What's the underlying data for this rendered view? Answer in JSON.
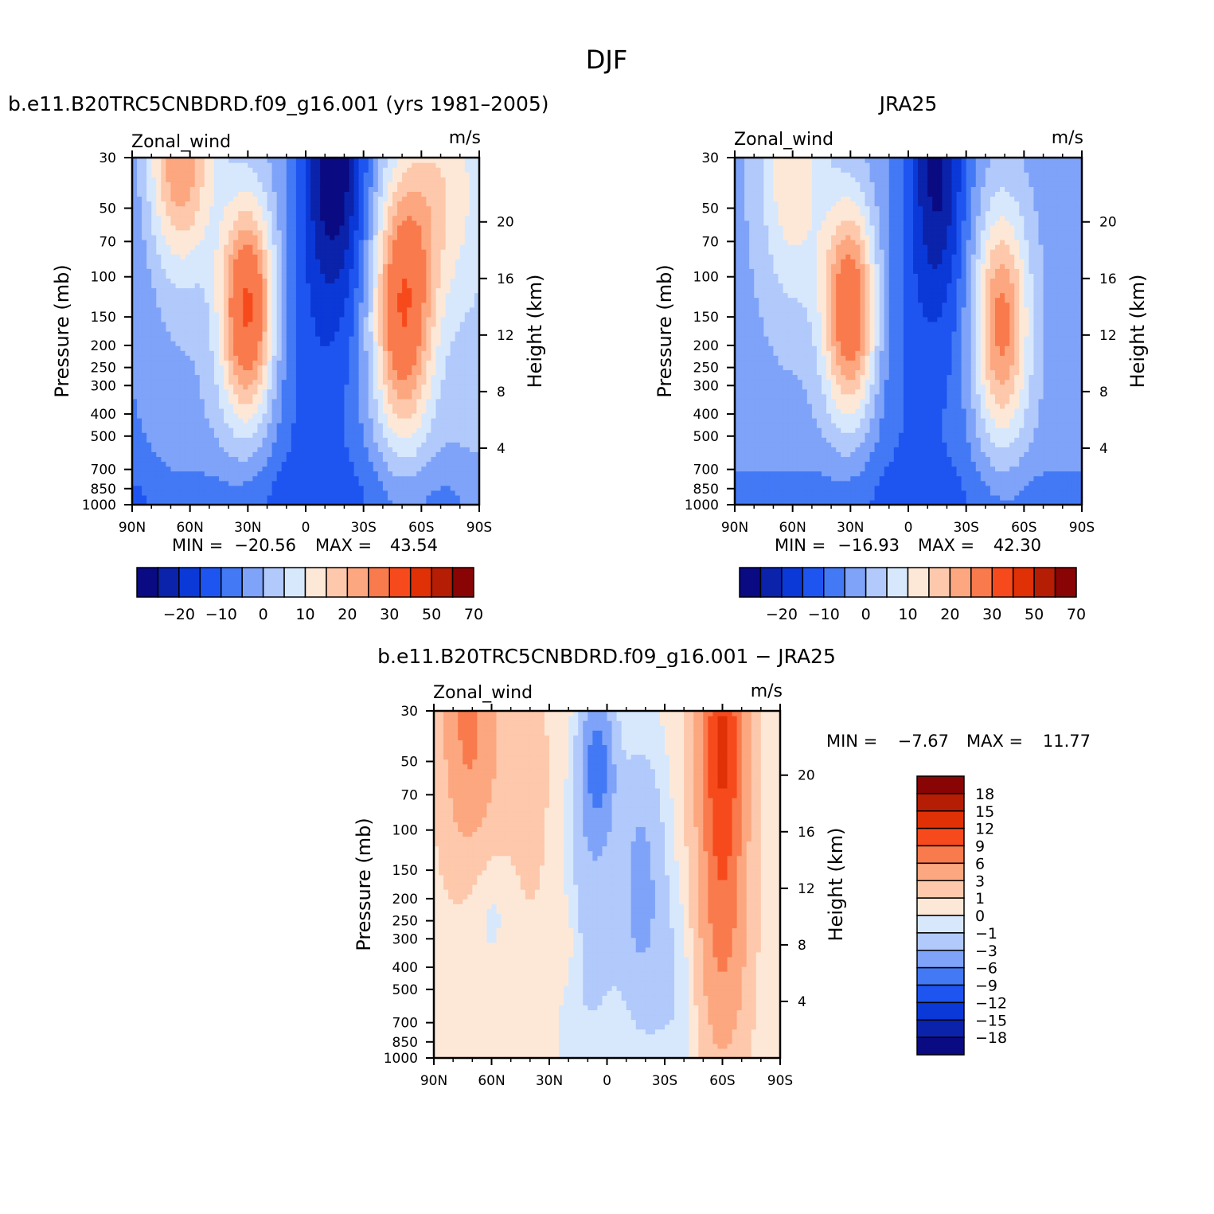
{
  "title": "DJF",
  "palette": [
    "#0a0a82",
    "#0b22aa",
    "#0b39d8",
    "#1e55f0",
    "#4379f5",
    "#7ea3f8",
    "#b1c9fb",
    "#d7e8fd",
    "#fde8d7",
    "#fdc8ab",
    "#fca77f",
    "#f97a4c",
    "#f74a1c",
    "#e03006",
    "#b51d04",
    "#890404"
  ],
  "chart_data": [
    {
      "type": "heatmap",
      "title": "b.e11.B20TRC5CNBDRD.f09_g16.001 (yrs 1981–2005)",
      "left_label": "Zonal_wind",
      "right_label": "m/s",
      "ylabel": "Pressure (mb)",
      "ylabel2": "Height (km)",
      "x_ticks": [
        "90N",
        "60N",
        "30N",
        "0",
        "30S",
        "60S",
        "90S"
      ],
      "x_range": [
        90,
        -90
      ],
      "y_ticks": [
        "30",
        "50",
        "70",
        "100",
        "150",
        "200",
        "250",
        "300",
        "400",
        "500",
        "700",
        "850",
        "1000"
      ],
      "y_range": [
        1000,
        30
      ],
      "y_scale": "log",
      "height_ticks": [
        "20",
        "16",
        "12",
        "8",
        "4"
      ],
      "min_label": "MIN =",
      "min_value": "−20.56",
      "max_label": "MAX =",
      "max_value": "43.54",
      "colorbar_labels": [
        "−20",
        "−10",
        "0",
        "10",
        "20",
        "30",
        "50",
        "70"
      ],
      "features": [
        {
          "lat": 30,
          "p": 200,
          "peak": 43.54
        },
        {
          "lat": -50,
          "p": 200,
          "peak": 38
        },
        {
          "lat": 65,
          "p": 30,
          "peak": 28
        },
        {
          "lat": -15,
          "p": 30,
          "peak": -20.56
        }
      ]
    },
    {
      "type": "heatmap",
      "title": "JRA25",
      "left_label": "Zonal_wind",
      "right_label": "m/s",
      "ylabel": "Pressure (mb)",
      "ylabel2": "Height (km)",
      "x_ticks": [
        "90N",
        "60N",
        "30N",
        "0",
        "30S",
        "60S",
        "90S"
      ],
      "x_range": [
        90,
        -90
      ],
      "y_ticks": [
        "30",
        "50",
        "70",
        "100",
        "150",
        "200",
        "250",
        "300",
        "400",
        "500",
        "700",
        "850",
        "1000"
      ],
      "y_range": [
        1000,
        30
      ],
      "y_scale": "log",
      "height_ticks": [
        "20",
        "16",
        "12",
        "8",
        "4"
      ],
      "min_label": "MIN =",
      "min_value": "−16.93",
      "max_label": "MAX =",
      "max_value": "42.30",
      "colorbar_labels": [
        "−20",
        "−10",
        "0",
        "10",
        "20",
        "30",
        "50",
        "70"
      ],
      "features": [
        {
          "lat": 30,
          "p": 200,
          "peak": 42.3
        },
        {
          "lat": -48,
          "p": 220,
          "peak": 33
        },
        {
          "lat": 60,
          "p": 30,
          "peak": 18
        },
        {
          "lat": -15,
          "p": 30,
          "peak": -16.93
        }
      ]
    },
    {
      "type": "heatmap",
      "title": "b.e11.B20TRC5CNBDRD.f09_g16.001 − JRA25",
      "left_label": "Zonal_wind",
      "right_label": "m/s",
      "ylabel": "Pressure (mb)",
      "ylabel2": "Height (km)",
      "x_ticks": [
        "90N",
        "60N",
        "30N",
        "0",
        "30S",
        "60S",
        "90S"
      ],
      "x_range": [
        90,
        -90
      ],
      "y_ticks": [
        "30",
        "50",
        "70",
        "100",
        "150",
        "200",
        "250",
        "300",
        "400",
        "500",
        "700",
        "850",
        "1000"
      ],
      "y_range": [
        1000,
        30
      ],
      "y_scale": "log",
      "height_ticks": [
        "20",
        "16",
        "12",
        "8",
        "4"
      ],
      "min_label": "MIN =",
      "min_value": "−7.67",
      "max_label": "MAX =",
      "max_value": "11.77",
      "colorbar_labels": [
        "18",
        "15",
        "12",
        "9",
        "6",
        "3",
        "1",
        "0",
        "−1",
        "−3",
        "−6",
        "−9",
        "−12",
        "−15",
        "−18"
      ],
      "features": [
        {
          "lat": -60,
          "p": 40,
          "peak": 11.77
        },
        {
          "lat": 70,
          "p": 35,
          "peak": 7
        },
        {
          "lat": 5,
          "p": 55,
          "peak": -7.67
        },
        {
          "lat": -18,
          "p": 250,
          "peak": -4
        }
      ]
    }
  ]
}
